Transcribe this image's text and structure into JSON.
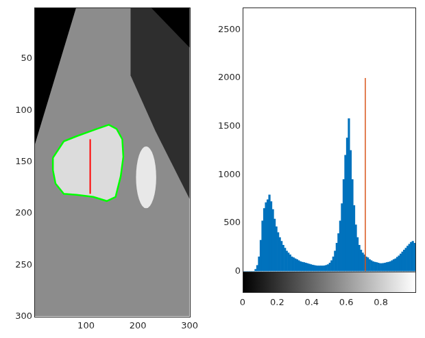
{
  "chart_data": [
    {
      "type": "image",
      "xlim": [
        0,
        300
      ],
      "ylim": [
        300,
        0
      ],
      "xticks": [
        100,
        200,
        300
      ],
      "yticks": [
        50,
        100,
        150,
        200,
        250,
        300
      ],
      "contour": {
        "color": "#00ff00",
        "x": [
          36,
          57,
          82,
          121,
          144,
          159,
          170,
          172,
          167,
          157,
          140,
          114,
          82,
          57,
          41,
          36
        ],
        "y": [
          146,
          130,
          125,
          118,
          114,
          118,
          128,
          145,
          164,
          184,
          188,
          184,
          182,
          181,
          171,
          158
        ]
      },
      "lines": [
        {
          "color": "#ff0000",
          "x": [
            108,
            108
          ],
          "y": [
            128,
            181
          ]
        }
      ]
    },
    {
      "type": "histogram",
      "bins": [
        0,
        0.01,
        0.02,
        0.03,
        0.04,
        0.05,
        0.06,
        0.07,
        0.08,
        0.09,
        0.1,
        0.11,
        0.12,
        0.13,
        0.14,
        0.15,
        0.16,
        0.17,
        0.18,
        0.19,
        0.2,
        0.21,
        0.22,
        0.23,
        0.24,
        0.25,
        0.26,
        0.27,
        0.28,
        0.29,
        0.3,
        0.31,
        0.32,
        0.33,
        0.34,
        0.35,
        0.36,
        0.37,
        0.38,
        0.39,
        0.4,
        0.41,
        0.42,
        0.43,
        0.44,
        0.45,
        0.46,
        0.47,
        0.48,
        0.49,
        0.5,
        0.51,
        0.52,
        0.53,
        0.54,
        0.55,
        0.56,
        0.57,
        0.58,
        0.59,
        0.6,
        0.61,
        0.62,
        0.63,
        0.64,
        0.65,
        0.66,
        0.67,
        0.68,
        0.69,
        0.7,
        0.71,
        0.72,
        0.73,
        0.74,
        0.75,
        0.76,
        0.77,
        0.78,
        0.79,
        0.8,
        0.81,
        0.82,
        0.83,
        0.84,
        0.85,
        0.86,
        0.87,
        0.88,
        0.89,
        0.9,
        0.91,
        0.92,
        0.93,
        0.94,
        0.95,
        0.96,
        0.97,
        0.98,
        0.99,
        1
      ],
      "counts": [
        0,
        0,
        0,
        0,
        0,
        0,
        0,
        20,
        60,
        150,
        320,
        520,
        650,
        710,
        740,
        790,
        720,
        640,
        540,
        460,
        400,
        350,
        310,
        270,
        240,
        210,
        190,
        170,
        150,
        140,
        130,
        120,
        110,
        100,
        95,
        90,
        85,
        80,
        75,
        70,
        65,
        60,
        58,
        56,
        55,
        55,
        56,
        58,
        62,
        70,
        85,
        110,
        150,
        210,
        290,
        390,
        520,
        700,
        950,
        1200,
        1380,
        1580,
        1250,
        950,
        680,
        480,
        350,
        270,
        220,
        190,
        170,
        150,
        140,
        120,
        110,
        100,
        95,
        90,
        85,
        80,
        80,
        82,
        85,
        90,
        95,
        100,
        110,
        120,
        130,
        145,
        160,
        180,
        200,
        220,
        240,
        260,
        280,
        300,
        310,
        290
      ],
      "color": "#0072bd",
      "xlim": [
        0,
        1
      ],
      "ylim": [
        0,
        2730
      ],
      "xticks": [
        0,
        0.2,
        0.4,
        0.6,
        0.8
      ],
      "yticks": [
        0,
        500,
        1000,
        1500,
        2000,
        2500
      ],
      "colorbar": {
        "range": [
          0,
          1
        ]
      },
      "lines": [
        {
          "color": "#d95319",
          "x": [
            0.71,
            0.71
          ],
          "y": [
            0,
            2000
          ]
        }
      ]
    }
  ]
}
